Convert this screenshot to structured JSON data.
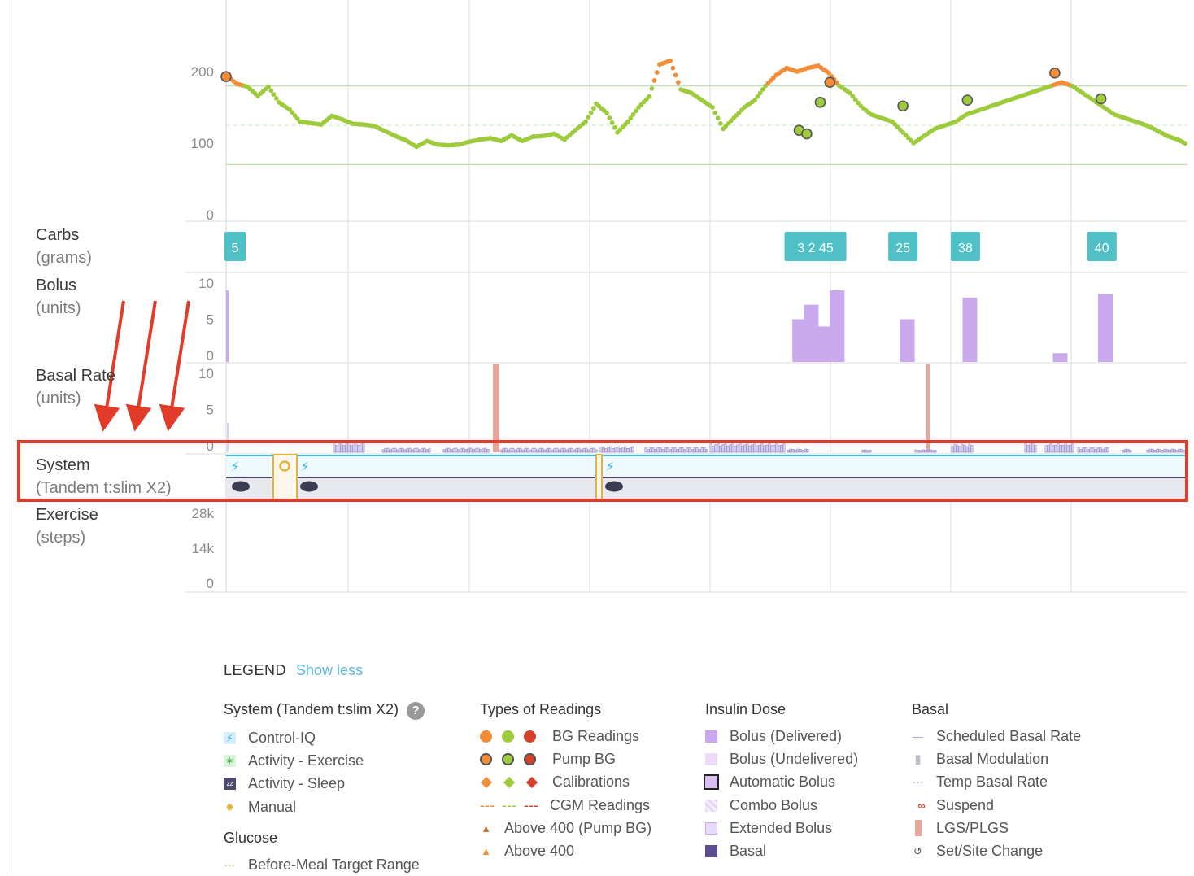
{
  "y_ticks": {
    "bg": [
      "200",
      "100",
      "0"
    ],
    "bolus": [
      "10",
      "5",
      "0"
    ],
    "basal": [
      "10",
      "5",
      "0"
    ],
    "steps": [
      "28k",
      "14k",
      "0"
    ]
  },
  "row_labels": {
    "carbs": {
      "title": "Carbs",
      "unit": "(grams)"
    },
    "bolus": {
      "title": "Bolus",
      "unit": "(units)"
    },
    "basal": {
      "title": "Basal Rate",
      "unit": "(units)"
    },
    "system": {
      "title": "System",
      "unit": "(Tandem t:slim X2)"
    },
    "exercise": {
      "title": "Exercise",
      "unit": "(steps)"
    }
  },
  "carb_entries": [
    "5",
    "3 2 45",
    "25",
    "38",
    "40"
  ],
  "legend": {
    "title": "LEGEND",
    "toggle": "Show less",
    "system": {
      "title": "System (Tandem t:slim X2)",
      "items": [
        "Control-IQ",
        "Activity - Exercise",
        "Activity - Sleep",
        "Manual"
      ]
    },
    "glucose": {
      "title": "Glucose",
      "items": [
        "Before-Meal Target Range"
      ]
    },
    "readings": {
      "title": "Types of Readings",
      "items": [
        "BG Readings",
        "Pump BG",
        "Calibrations",
        "CGM Readings",
        "Above 400 (Pump BG)",
        "Above 400"
      ]
    },
    "insulin": {
      "title": "Insulin Dose",
      "items": [
        "Bolus (Delivered)",
        "Bolus (Undelivered)",
        "Automatic Bolus",
        "Combo Bolus",
        "Extended Bolus",
        "Basal"
      ]
    },
    "basal": {
      "title": "Basal",
      "items": [
        "Scheduled Basal Rate",
        "Basal Modulation",
        "Temp Basal Rate",
        "Suspend",
        "LGS/PLGS",
        "Set/Site Change"
      ]
    }
  },
  "colors": {
    "in_range": "#9ecb3c",
    "high": "#f28e37",
    "low": "#d6402a",
    "carb": "#4fc0c5",
    "bolus": "#c9a8ee",
    "basal": "#a89bd3",
    "lgs": "#e8a69a",
    "control_iq": "#3fb6e3",
    "manual": "#e2b33a",
    "highlight": "#e33b2a"
  },
  "chart_data": {
    "type": "scatter",
    "bg_ylim": [
      0,
      300
    ],
    "target_range": [
      70,
      180
    ],
    "cgm_x": [
      0.0,
      0.011,
      0.022,
      0.033,
      0.044,
      0.055,
      0.066,
      0.077,
      0.088,
      0.099,
      0.11,
      0.121,
      0.132,
      0.143,
      0.154,
      0.165,
      0.176,
      0.187,
      0.198,
      0.209,
      0.22,
      0.231,
      0.242,
      0.253,
      0.264,
      0.275,
      0.286,
      0.297,
      0.308,
      0.319,
      0.33,
      0.341,
      0.352,
      0.363,
      0.374,
      0.385,
      0.396,
      0.407,
      0.418,
      0.429,
      0.44,
      0.451,
      0.462,
      0.473,
      0.484,
      0.495,
      0.506,
      0.517,
      0.528,
      0.539,
      0.55,
      0.561,
      0.572,
      0.583,
      0.594,
      0.605,
      0.616,
      0.627,
      0.638,
      0.649,
      0.66,
      0.671,
      0.682,
      0.693,
      0.704,
      0.715,
      0.726,
      0.737,
      0.748,
      0.759,
      0.77,
      0.781,
      0.792,
      0.803,
      0.814,
      0.825,
      0.836,
      0.847,
      0.858,
      0.869,
      0.88,
      0.891,
      0.902,
      0.913,
      0.924,
      0.935,
      0.946,
      0.957,
      0.968,
      0.979,
      0.99,
      1.0
    ],
    "cgm_y": [
      195,
      183,
      179,
      166,
      179,
      157,
      147,
      130,
      128,
      126,
      138,
      133,
      127,
      126,
      124,
      117,
      110,
      104,
      95,
      103,
      98,
      97,
      98,
      102,
      105,
      107,
      103,
      111,
      103,
      109,
      110,
      113,
      105,
      118,
      130,
      155,
      142,
      115,
      130,
      150,
      165,
      210,
      215,
      175,
      170,
      160,
      150,
      120,
      135,
      150,
      160,
      180,
      195,
      205,
      200,
      205,
      208,
      198,
      180,
      170,
      152,
      140,
      135,
      130,
      115,
      100,
      110,
      120,
      125,
      130,
      140,
      145,
      150,
      155,
      160,
      165,
      170,
      175,
      180,
      185,
      180,
      170,
      160,
      150,
      140,
      135,
      130,
      125,
      118,
      110,
      105,
      98
    ],
    "bg_marker_x": [
      0.0,
      0.596,
      0.604,
      0.618,
      0.628,
      0.704,
      0.771,
      0.862,
      0.91
    ],
    "bg_marker_y": [
      193,
      118,
      113,
      157,
      185,
      152,
      160,
      198,
      162
    ],
    "carb_x": [
      0.003,
      0.613,
      0.704,
      0.769,
      0.911
    ],
    "bolus_x": [
      0.0,
      0.589,
      0.601,
      0.613,
      0.628,
      0.701,
      0.766,
      0.86,
      0.907
    ],
    "bolus_units": [
      9,
      5,
      7,
      4,
      9,
      5,
      8,
      0.3,
      8.5
    ],
    "bolus_ylim": [
      0,
      10
    ],
    "basal_ylim": [
      0,
      10
    ],
    "steps_ylim": [
      0,
      28000
    ]
  }
}
